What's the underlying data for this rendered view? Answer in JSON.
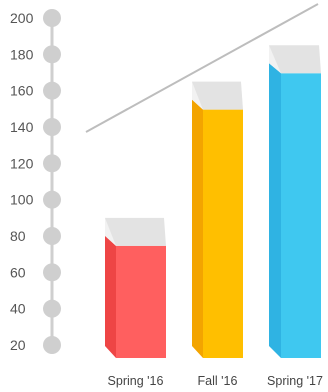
{
  "chart_data": {
    "type": "bar",
    "categories": [
      "Spring '16",
      "Fall '16",
      "Spring '17"
    ],
    "values": [
      90,
      165,
      185
    ],
    "yticks": [
      20,
      40,
      60,
      80,
      100,
      120,
      140,
      160,
      180,
      200
    ],
    "ylim": [
      20,
      200
    ],
    "grid": false,
    "trend_line": true,
    "colors": {
      "bars": [
        "#ff5f5f",
        "#ffbf00",
        "#3fc8f0"
      ],
      "bar_sides": [
        "#ee4545",
        "#f3a400",
        "#2fb3e3"
      ],
      "caps": "#e3e3e3",
      "cap_sides": "#f2f2f2",
      "axis_dots": "#cfcfcf",
      "trend": "#bdbdbd"
    }
  }
}
